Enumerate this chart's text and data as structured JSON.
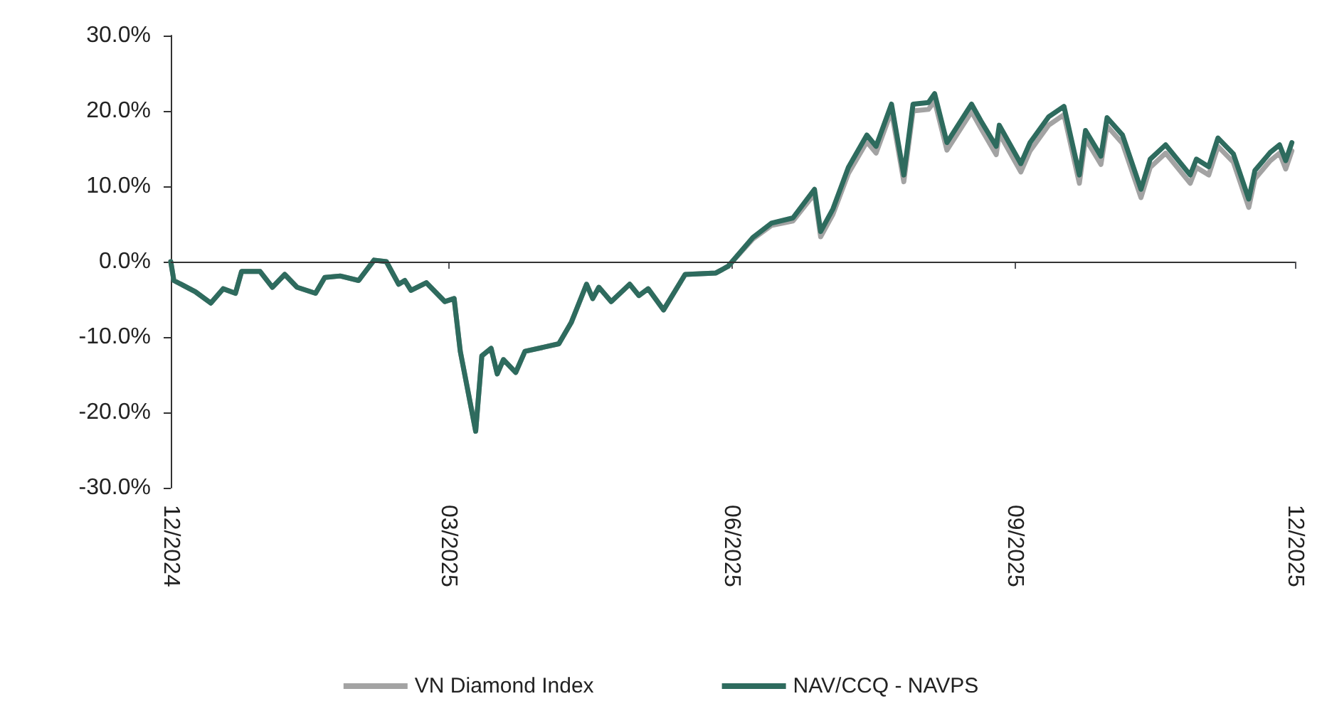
{
  "chart_data": {
    "type": "line",
    "x": [
      "2024-12-01",
      "2024-12-02",
      "2024-12-09",
      "2024-12-14",
      "2024-12-18",
      "2024-12-22",
      "2024-12-24",
      "2024-12-30",
      "2025-01-03",
      "2025-01-07",
      "2025-01-11",
      "2025-01-17",
      "2025-01-20",
      "2025-01-25",
      "2025-01-31",
      "2025-02-05",
      "2025-02-09",
      "2025-02-13",
      "2025-02-15",
      "2025-02-17",
      "2025-02-22",
      "2025-02-28",
      "2025-03-03",
      "2025-03-05",
      "2025-03-10",
      "2025-03-12",
      "2025-03-15",
      "2025-03-17",
      "2025-03-19",
      "2025-03-23",
      "2025-03-26",
      "2025-04-06",
      "2025-04-10",
      "2025-04-15",
      "2025-04-17",
      "2025-04-19",
      "2025-04-23",
      "2025-04-29",
      "2025-05-02",
      "2025-05-05",
      "2025-05-10",
      "2025-05-17",
      "2025-05-27",
      "2025-05-31",
      "2025-06-08",
      "2025-06-14",
      "2025-06-21",
      "2025-06-28",
      "2025-06-30",
      "2025-07-04",
      "2025-07-09",
      "2025-07-15",
      "2025-07-18",
      "2025-07-23",
      "2025-07-27",
      "2025-07-30",
      "2025-08-04",
      "2025-08-06",
      "2025-08-10",
      "2025-08-18",
      "2025-08-21",
      "2025-08-26",
      "2025-08-27",
      "2025-09-03",
      "2025-09-06",
      "2025-09-12",
      "2025-09-17",
      "2025-09-22",
      "2025-09-24",
      "2025-09-29",
      "2025-10-01",
      "2025-10-06",
      "2025-10-12",
      "2025-10-15",
      "2025-10-20",
      "2025-10-28",
      "2025-10-30",
      "2025-11-03",
      "2025-11-06",
      "2025-11-11",
      "2025-11-16",
      "2025-11-18",
      "2025-11-23",
      "2025-11-26",
      "2025-11-28",
      "2025-11-30"
    ],
    "series": [
      {
        "name": "VN Diamond Index",
        "color": "#a3a3a3",
        "values": [
          0,
          -2.5,
          -4,
          -5.5,
          -3.6,
          -4.2,
          -1.3,
          -1.3,
          -3.4,
          -1.7,
          -3.4,
          -4.2,
          -2.1,
          -1.9,
          -2.5,
          0.2,
          0,
          -3,
          -2.5,
          -3.8,
          -2.8,
          -5.3,
          -4.9,
          -11.9,
          -22.5,
          -12.5,
          -11.5,
          -14.9,
          -13,
          -14.7,
          -11.9,
          -10.9,
          -8.1,
          -3,
          -4.9,
          -3.4,
          -5.3,
          -3,
          -4.5,
          -3.6,
          -6.4,
          -1.7,
          -1.5,
          -0.6,
          3,
          4.8,
          5.4,
          9,
          3.3,
          6.3,
          11.7,
          15.9,
          14.4,
          20,
          10.6,
          20,
          20.2,
          21.3,
          14.8,
          19.9,
          17.7,
          14.2,
          17,
          11.9,
          14.7,
          18.1,
          19.5,
          10.4,
          16.3,
          12.9,
          18,
          15.7,
          8.5,
          12.5,
          14.4,
          10.4,
          12.5,
          11.5,
          15.3,
          13.2,
          7.2,
          11,
          13.4,
          14.4,
          12.3,
          14.7
        ]
      },
      {
        "name": "NAV/CCQ - NAVPS",
        "color": "#2e6b5e",
        "values": [
          0,
          -2.5,
          -4,
          -5.5,
          -3.6,
          -4.2,
          -1.3,
          -1.3,
          -3.4,
          -1.7,
          -3.4,
          -4.2,
          -2.1,
          -1.9,
          -2.5,
          0.2,
          0,
          -3,
          -2.5,
          -3.8,
          -2.8,
          -5.3,
          -4.9,
          -11.9,
          -22.5,
          -12.5,
          -11.5,
          -14.9,
          -13,
          -14.7,
          -11.9,
          -10.9,
          -8.1,
          -3,
          -4.9,
          -3.4,
          -5.3,
          -3,
          -4.5,
          -3.6,
          -6.4,
          -1.7,
          -1.5,
          -0.6,
          3.2,
          5.1,
          5.8,
          9.6,
          4,
          7,
          12.5,
          16.8,
          15.3,
          20.9,
          11.5,
          20.9,
          21.1,
          22.3,
          15.8,
          20.9,
          18.7,
          15.3,
          18.1,
          13,
          15.8,
          19.2,
          20.6,
          11.5,
          17.4,
          14,
          19.1,
          16.8,
          9.6,
          13.6,
          15.5,
          11.5,
          13.6,
          12.6,
          16.4,
          14.3,
          8.3,
          12.1,
          14.5,
          15.5,
          13.4,
          15.8
        ]
      }
    ],
    "xlim": [
      "2024-12-01",
      "2025-12-01"
    ],
    "xticks": [
      {
        "value": "2024-12-01",
        "label": "12/2024"
      },
      {
        "value": "2025-03-01",
        "label": "03/2025"
      },
      {
        "value": "2025-06-01",
        "label": "06/2025"
      },
      {
        "value": "2025-09-01",
        "label": "09/2025"
      },
      {
        "value": "2025-12-01",
        "label": "12/2025"
      }
    ],
    "ylim": [
      -30,
      30
    ],
    "yticks": [
      {
        "value": -30,
        "label": "-30.0%"
      },
      {
        "value": -20,
        "label": "-20.0%"
      },
      {
        "value": -10,
        "label": "-10.0%"
      },
      {
        "value": 0,
        "label": "0.0%"
      },
      {
        "value": 10,
        "label": "10.0%"
      },
      {
        "value": 20,
        "label": "20.0%"
      },
      {
        "value": 30,
        "label": "30.0%"
      }
    ],
    "ref_lines": [
      {
        "axis": "y",
        "value": 0,
        "color": "#333333"
      }
    ],
    "grid": false,
    "legend": "bottom",
    "marker": "none",
    "line_style": "solid"
  }
}
